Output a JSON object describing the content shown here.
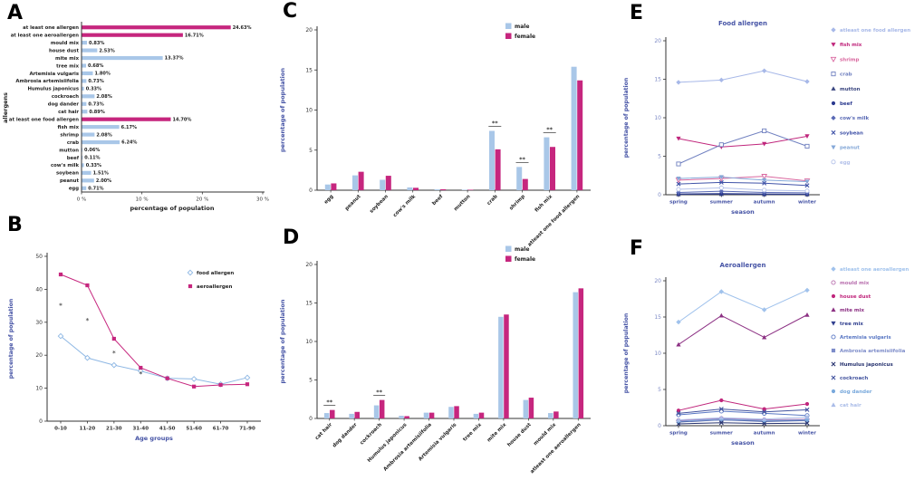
{
  "figure": {
    "bar_color_primary": "#a9c7e8",
    "bar_color_accent": "#c6267e",
    "axis_label_color": "#4553a5"
  },
  "chart_data": [
    {
      "panel": "A",
      "type": "bar",
      "orientation": "horizontal",
      "xlabel": "percentage of population",
      "ylabel": "allergens",
      "xlim": [
        0,
        30
      ],
      "xticks": [
        {
          "v": 0,
          "label": "0 %"
        },
        {
          "v": 10,
          "label": "10 %"
        },
        {
          "v": 20,
          "label": "20 %"
        },
        {
          "v": 30,
          "label": "30 %"
        }
      ],
      "categories": [
        "at least one allergen",
        "at least one aeroallergen",
        "mould mix",
        "house dust",
        "mite mix",
        "tree mix",
        "Artemisia vulgaris",
        "Ambrosia artemisiifolia",
        "Humulus japonicus",
        "cockroach",
        "dog dander",
        "cat hair",
        "at least one food allergen",
        "fish mix",
        "shrimp",
        "crab",
        "mutton",
        "beef",
        "cow's milk",
        "soybean",
        "peanut",
        "egg"
      ],
      "values": [
        24.63,
        16.71,
        0.83,
        2.53,
        13.37,
        0.68,
        1.8,
        0.73,
        0.33,
        2.08,
        0.73,
        0.89,
        14.7,
        6.17,
        2.08,
        6.24,
        0.06,
        0.11,
        0.33,
        1.51,
        2.0,
        0.71
      ],
      "value_labels": [
        "24.63%",
        "16.71%",
        "0.83%",
        "2.53%",
        "13.37%",
        "0.68%",
        "1.80%",
        "0.73%",
        "0.33%",
        "2.08%",
        "0.73%",
        "0.89%",
        "14.70%",
        "6.17%",
        "2.08%",
        "6.24%",
        "0.06%",
        "0.11%",
        "0.33%",
        "1.51%",
        "2.00%",
        "0.71%"
      ],
      "accent": [
        true,
        true,
        false,
        false,
        false,
        false,
        false,
        false,
        false,
        false,
        false,
        false,
        true,
        false,
        false,
        false,
        false,
        false,
        false,
        false,
        false,
        false
      ]
    },
    {
      "panel": "B",
      "type": "line",
      "x": [
        "0-10",
        "11-20",
        "21-30",
        "31-40",
        "41-50",
        "51-60",
        "61-70",
        "71-90"
      ],
      "xlabel": "Age groups",
      "ylabel": "percentage of population",
      "ylim": [
        0,
        50
      ],
      "yticks": [
        0,
        10,
        20,
        30,
        40,
        50
      ],
      "series": [
        {
          "name": "food allergen",
          "color": "#8fb8e4",
          "marker": "diamond-open",
          "values": [
            25.8,
            19.2,
            17.0,
            15.2,
            13.0,
            12.8,
            11.2,
            13.2
          ]
        },
        {
          "name": "aeroallergen",
          "color": "#c6267e",
          "marker": "square",
          "values": [
            44.5,
            41.2,
            25.0,
            16.2,
            13.0,
            10.5,
            11.0,
            11.2
          ]
        }
      ],
      "annotations": [
        {
          "x": 0,
          "y": 34.5,
          "text": "*"
        },
        {
          "x": 1,
          "y": 30.0,
          "text": "*"
        },
        {
          "x": 2,
          "y": 20.0,
          "text": "*"
        },
        {
          "x": 3,
          "y": 13.8,
          "text": "*"
        }
      ]
    },
    {
      "panel": "C",
      "type": "bar",
      "orientation": "vertical-grouped",
      "ylabel": "percentage of  population",
      "ylim": [
        0,
        20
      ],
      "yticks": [
        0,
        5,
        10,
        15,
        20
      ],
      "categories": [
        "egg",
        "peanut",
        "soybean",
        "cow's milk",
        "beef",
        "mutton",
        "crab",
        "shrimp",
        "fish mix",
        "atleast one food allergen"
      ],
      "series": [
        {
          "name": "male",
          "color": "#a9c7e8",
          "values": [
            0.71,
            1.85,
            1.3,
            0.35,
            0.1,
            0.06,
            7.4,
            2.9,
            6.6,
            15.4
          ]
        },
        {
          "name": "female",
          "color": "#c6267e",
          "values": [
            0.85,
            2.3,
            1.8,
            0.3,
            0.12,
            0.06,
            5.1,
            1.4,
            5.4,
            13.7
          ]
        }
      ],
      "significance": [
        {
          "category": "crab",
          "label": "**"
        },
        {
          "category": "shrimp",
          "label": "**"
        },
        {
          "category": "fish mix",
          "label": "**"
        }
      ]
    },
    {
      "panel": "D",
      "type": "bar",
      "orientation": "vertical-grouped",
      "ylabel": "percentage of  population",
      "ylim": [
        0,
        20
      ],
      "yticks": [
        0,
        5,
        10,
        15,
        20
      ],
      "categories": [
        "cat hair",
        "dog dander",
        "cockroach",
        "Humulus japonicus",
        "Ambrosia artemisiifolia",
        "Artemisia vulgaris",
        "tree mix",
        "mite mix",
        "house dust",
        "mould mix",
        "atleast one aeroallergen"
      ],
      "series": [
        {
          "name": "male",
          "color": "#a9c7e8",
          "values": [
            0.7,
            0.6,
            1.7,
            0.35,
            0.75,
            1.5,
            0.6,
            13.2,
            2.4,
            0.7,
            16.4
          ]
        },
        {
          "name": "female",
          "color": "#c6267e",
          "values": [
            1.1,
            0.85,
            2.4,
            0.3,
            0.75,
            1.6,
            0.75,
            13.5,
            2.7,
            0.9,
            16.9
          ]
        }
      ],
      "significance": [
        {
          "category": "cat hair",
          "label": "**"
        },
        {
          "category": "cockroach",
          "label": "**"
        }
      ]
    },
    {
      "panel": "E",
      "type": "line",
      "title": "Food allergen",
      "x": [
        "spring",
        "summer",
        "autumn",
        "winter"
      ],
      "xlabel": "season",
      "ylabel": "percentage of population",
      "ylim": [
        0,
        20
      ],
      "yticks": [
        0,
        5,
        10,
        15,
        20
      ],
      "series": [
        {
          "name": "atleast one food allergen",
          "color": "#a7b8e8",
          "marker": "diamond",
          "values": [
            14.6,
            14.9,
            16.1,
            14.7
          ]
        },
        {
          "name": "fish mix",
          "color": "#c0267c",
          "marker": "triangle-down",
          "values": [
            7.3,
            6.2,
            6.6,
            7.6
          ]
        },
        {
          "name": "shrimp",
          "color": "#d9679f",
          "marker": "triangle-down-open",
          "values": [
            1.9,
            2.1,
            2.4,
            1.8
          ]
        },
        {
          "name": "crab",
          "color": "#7080c0",
          "marker": "square-open",
          "values": [
            4.0,
            6.5,
            8.3,
            6.3
          ]
        },
        {
          "name": "mutton",
          "color": "#39457f",
          "marker": "triangle-up",
          "values": [
            0.05,
            0.08,
            0.05,
            0.04
          ]
        },
        {
          "name": "beef",
          "color": "#2b3a8f",
          "marker": "circle",
          "values": [
            0.1,
            0.15,
            0.1,
            0.08
          ]
        },
        {
          "name": "cow's milk",
          "color": "#5a6ab5",
          "marker": "diamond",
          "values": [
            0.3,
            0.45,
            0.3,
            0.25
          ]
        },
        {
          "name": "soybean",
          "color": "#4053a8",
          "marker": "cross",
          "values": [
            1.4,
            1.6,
            1.5,
            1.2
          ]
        },
        {
          "name": "peanut",
          "color": "#85a8d8",
          "marker": "triangle-down",
          "values": [
            2.1,
            2.3,
            1.9,
            1.7
          ]
        },
        {
          "name": "egg",
          "color": "#b5c2ea",
          "marker": "circle-open",
          "values": [
            0.7,
            0.9,
            0.6,
            0.5
          ]
        }
      ]
    },
    {
      "panel": "F",
      "type": "line",
      "title": "Aeroallergen",
      "x": [
        "spring",
        "summer",
        "autumn",
        "winter"
      ],
      "xlabel": "season",
      "ylabel": "percentage of population",
      "ylim": [
        0,
        20
      ],
      "yticks": [
        0,
        5,
        10,
        15,
        20
      ],
      "series": [
        {
          "name": "atleast one aeroallergen",
          "color": "#a0c2ec",
          "marker": "diamond",
          "values": [
            14.3,
            18.5,
            16.0,
            18.7
          ]
        },
        {
          "name": "mould mix",
          "color": "#b86fae",
          "marker": "circle-open",
          "values": [
            0.7,
            1.0,
            0.8,
            0.9
          ]
        },
        {
          "name": "house dust",
          "color": "#c0267c",
          "marker": "circle",
          "values": [
            2.1,
            3.5,
            2.3,
            3.0
          ]
        },
        {
          "name": "mite mix",
          "color": "#8c3083",
          "marker": "triangle-up",
          "values": [
            11.2,
            15.2,
            12.2,
            15.3
          ]
        },
        {
          "name": "tree mix",
          "color": "#31408f",
          "marker": "triangle-down",
          "values": [
            0.5,
            0.8,
            0.6,
            0.7
          ]
        },
        {
          "name": "Artemisia vulgaris",
          "color": "#5a78c4",
          "marker": "circle-open",
          "values": [
            1.5,
            2.0,
            1.7,
            1.4
          ]
        },
        {
          "name": "Ambrosia artemisiifolia",
          "color": "#7d8cc9",
          "marker": "square",
          "values": [
            0.6,
            0.8,
            0.7,
            0.75
          ]
        },
        {
          "name": "Humulus japonicus",
          "color": "#27336f",
          "marker": "cross",
          "values": [
            0.25,
            0.4,
            0.3,
            0.35
          ]
        },
        {
          "name": "cockroach",
          "color": "#41529e",
          "marker": "cross",
          "values": [
            1.7,
            2.3,
            1.9,
            2.2
          ]
        },
        {
          "name": "dog dander",
          "color": "#79a9dc",
          "marker": "circle",
          "values": [
            0.6,
            0.9,
            0.7,
            0.8
          ]
        },
        {
          "name": "cat hair",
          "color": "#aabce8",
          "marker": "triangle-up",
          "values": [
            0.8,
            1.1,
            0.9,
            1.2
          ]
        }
      ]
    }
  ]
}
